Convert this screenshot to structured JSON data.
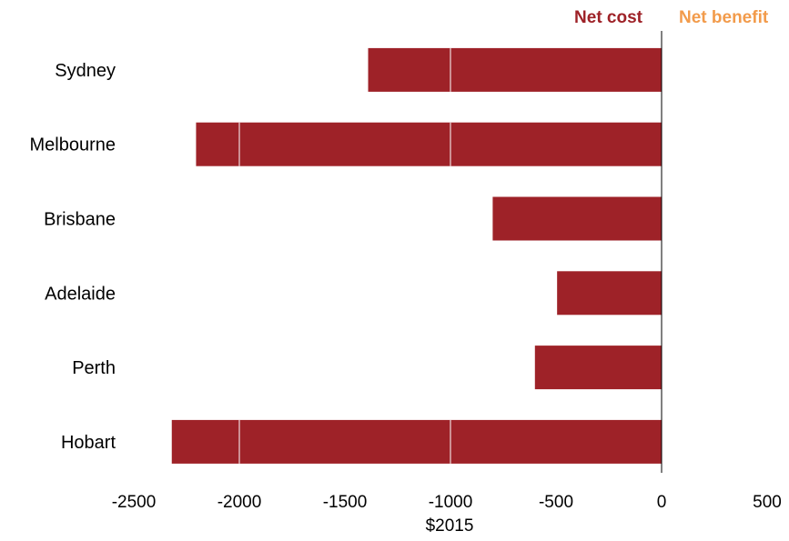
{
  "chart_data": {
    "type": "bar",
    "orientation": "horizontal",
    "categories": [
      "Sydney",
      "Melbourne",
      "Brisbane",
      "Adelaide",
      "Perth",
      "Hobart"
    ],
    "values": [
      -1390,
      -2205,
      -800,
      -495,
      -600,
      -2320
    ],
    "xlabel": "$2015",
    "ylabel": "",
    "xlim": [
      -2500,
      500
    ],
    "xticks": [
      "-2500",
      "-2000",
      "-1500",
      "-1000",
      "-500",
      "0",
      "500"
    ],
    "xtick_values": [
      -2500,
      -2000,
      -1500,
      -1000,
      -500,
      0,
      500
    ],
    "grid": false,
    "legend_placement": "top-right",
    "legend": [
      {
        "label": "Net cost",
        "color": "#9e2228"
      },
      {
        "label": "Net benefit",
        "color": "#f29b4b"
      }
    ],
    "bar_color": "#9e2228",
    "bar_divider_values": [
      -2000,
      -1000
    ]
  }
}
